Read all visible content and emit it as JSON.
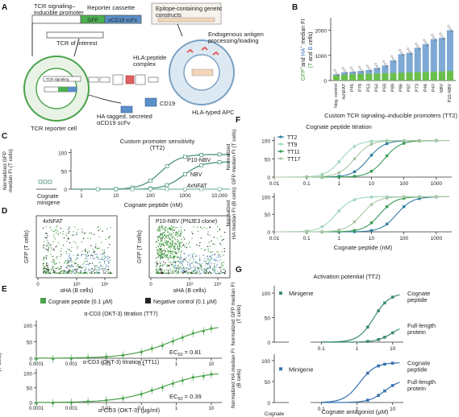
{
  "panel_letters": [
    "A",
    "B",
    "C",
    "D",
    "E",
    "F",
    "G"
  ],
  "panelA": {
    "tcr_signaling_label": "TCR signaling–\ninducible promoter",
    "reporter_cassette_label": "Reporter cassette",
    "gfp_label": "GFP",
    "scfv_label": "αCD19 scFv",
    "epitope_label": "Epitope-containing genetic\nconstructs",
    "tcr_interest_label": "TCR of interest",
    "endogenous_label": "Endogenous antigen\nprocessing/loading",
    "hla_peptide_label": "HLA:peptide\ncomplex",
    "tcr_signaling_small": "TCR signaling",
    "cd19_label": "CD19",
    "reporter_cell_label": "TCR reporter cell",
    "ha_label": "HA-tagged, secreted\nαCD19 scFv",
    "apc_label": "HLA-typed APC",
    "colors": {
      "gfp": "#4caf50",
      "scfv": "#5b8fc9",
      "cell": "#e8f3e6",
      "apc": "#dde9f2",
      "epitope": "#e06060"
    }
  },
  "chart_data": [
    {
      "id": "B",
      "type": "bar",
      "ylabel_parts": [
        "GFP",
        "+",
        "and ",
        "HA",
        "+",
        " median FI"
      ],
      "ylabel2_parts": [
        "(T",
        " and ",
        "B",
        " cells)"
      ],
      "xlabel": "Custom TCR signaling–inducible promoters (TT2)",
      "categories": [
        "Neg. control",
        "4xNFAT",
        "P45",
        "P78",
        "P53",
        "P54",
        "P59",
        "P89",
        "P86",
        "P87",
        "P73",
        "P46",
        "P47",
        "NBV",
        "P10-NBV"
      ],
      "yticks": [
        "0",
        "1000",
        "2000"
      ],
      "ylim": [
        0,
        2500
      ],
      "series": [
        {
          "name": "GFP",
          "color": "#6abf4b",
          "values": [
            200,
            230,
            250,
            260,
            270,
            280,
            290,
            300,
            310,
            320,
            330,
            340,
            350,
            360,
            380
          ]
        },
        {
          "name": "HA",
          "color": "#7fa9d4",
          "values": [
            250,
            330,
            350,
            380,
            420,
            500,
            600,
            800,
            1050,
            1100,
            1300,
            1450,
            1650,
            1700,
            2000
          ]
        }
      ]
    },
    {
      "id": "C",
      "type": "line",
      "title": "Custom promoter sensitivity",
      "subtitle": "(TT2)",
      "ylabel": "Normalized GFP\nmedian FI (T cells)",
      "xlabel": "Cognate peptide (nM)",
      "left_label": "Cognate\nminigene",
      "yticks": [
        "0",
        "50",
        "100"
      ],
      "xticks": [
        "1",
        "10",
        "100",
        "1000",
        "10,000"
      ],
      "ylim": [
        0,
        100
      ],
      "series": [
        {
          "name": "P10-NBV",
          "color": "#3d8c6d",
          "ec50": 200,
          "top": 95
        },
        {
          "name": "NBV",
          "color": "#3d8c6d",
          "ec50": 900,
          "top": 75
        },
        {
          "name": "4xNFAT",
          "color": "#7fb8a4",
          "ec50": 100000,
          "top": 5
        }
      ]
    },
    {
      "id": "D",
      "type": "scatter",
      "plots": [
        {
          "title": "4xNFAT"
        },
        {
          "title": "P10-NBV (PNJE3 clone)"
        }
      ],
      "ylabel": "GFP (T cells)",
      "xlabel": "αHA (B cells)",
      "xticks": [
        "0",
        "10³",
        "10⁴"
      ],
      "legend": [
        {
          "label": "Cognate peptide (0.1 μM)",
          "color": "#4aa24a"
        },
        {
          "label": "Negative control (0.1 μM)",
          "color": "#222222"
        }
      ]
    },
    {
      "id": "E",
      "type": "line",
      "plots": [
        {
          "title": "α-CD3 (OKT-3) titration (TT7)",
          "ec50_label": "EC",
          "ec50_sub": "50",
          "ec50_value": " = 0.81",
          "ec50": 0.81
        },
        {
          "title": "α-CD3 (OKT-3) titration (TT11)",
          "ec50_label": "EC",
          "ec50_sub": "50",
          "ec50_value": " = 0.39",
          "ec50": 0.39
        }
      ],
      "ylabel": "Normalized GFP median FI\n(T cells)",
      "xlabel": "α-CD3 (OKT-3) (μg/ml)",
      "xticks": [
        "0.0001",
        "0.001",
        "0.01",
        "0.1",
        "1",
        "10"
      ],
      "yticks": [
        "0",
        "50",
        "100"
      ],
      "color": "#4aa24a"
    },
    {
      "id": "F",
      "type": "line",
      "title": "Cognate peptide titration",
      "ylabel_top": "Normalized\nGFP median FI (T cells)",
      "ylabel_bottom": "Normalized\nHA median FI (B cells)",
      "xlabel": "Cognate peptide (nM)",
      "xticks": [
        "0.01",
        "0.1",
        "1",
        "10",
        "100",
        "1000"
      ],
      "yticks": [
        "0",
        "50",
        "100"
      ],
      "series": [
        {
          "name": "TT2",
          "color": "#2f7fa0",
          "ec50_top": 8,
          "ec50_bottom": 60
        },
        {
          "name": "TT9",
          "color": "#9fd6c0",
          "ec50_top": 1.2,
          "ec50_bottom": 0.8
        },
        {
          "name": "TT11",
          "color": "#3a9a57",
          "ec50_top": 25,
          "ec50_bottom": 18
        },
        {
          "name": "TT17",
          "color": "#a8c6a0",
          "ec50_top": 3,
          "ec50_bottom": 5
        }
      ]
    },
    {
      "id": "G",
      "type": "line",
      "title": "Activation potential (TT2)",
      "ylabel_top": "Normalized GFP median FI\n(T cells)",
      "ylabel_bottom": "Normalized HA median FI\n(B cells)",
      "xlabel": "Cognate antagonist (μM)",
      "left_label": "Cognate\nminigene",
      "minigene_label": "Minigene",
      "xticks": [
        "0.1",
        "1",
        "10"
      ],
      "yticks": [
        "0",
        "50",
        "100"
      ],
      "series": [
        {
          "name": "Cognate\npeptide",
          "color": "#3d8c6d"
        },
        {
          "name": "Full-length\nprotein",
          "color": "#3d8c6d"
        },
        {
          "name": "Cognate\npeptide",
          "color": "#3a72b0"
        },
        {
          "name": "Full-length\nprotein",
          "color": "#3a72b0"
        }
      ]
    }
  ]
}
